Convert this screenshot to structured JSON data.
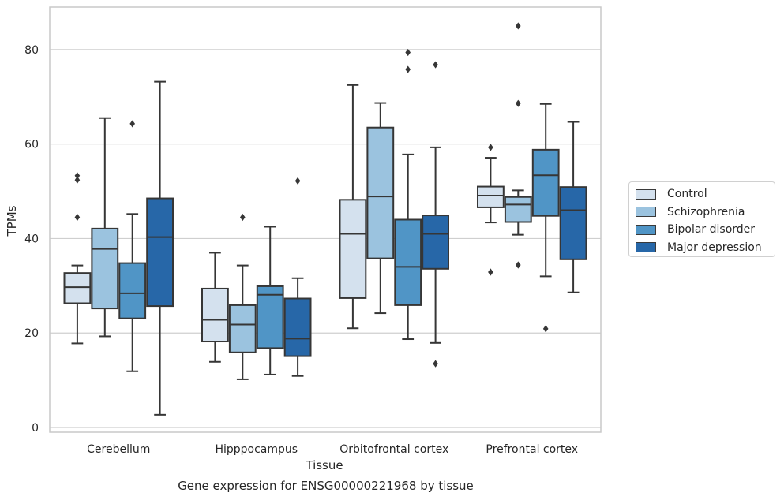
{
  "colors": {
    "series": [
      "#d4e1ee",
      "#9bc3df",
      "#5095c6",
      "#2767a8"
    ],
    "outline": "#363636",
    "grid": "#cfcfcf",
    "frame": "#c9c9c9"
  },
  "caption": "Gene expression for ENSG00000221968 by tissue",
  "chart_data": {
    "type": "box",
    "title": "",
    "xlabel": "Tissue",
    "ylabel": "TPMs",
    "ylim": [
      -1,
      89
    ],
    "yticks": [
      0,
      20,
      40,
      60,
      80
    ],
    "grid": "horizontal",
    "legend_position": "right",
    "categories": [
      "Cerebellum",
      "Hipppocampus",
      "Orbitofrontal cortex",
      "Prefrontal cortex"
    ],
    "series": [
      {
        "name": "Control",
        "boxes": [
          {
            "whisker_low": 17.8,
            "q1": 26.3,
            "median": 29.7,
            "q3": 32.7,
            "whisker_high": 34.3,
            "outliers": [
              44.5,
              52.4,
              53.3
            ]
          },
          {
            "whisker_low": 13.9,
            "q1": 18.2,
            "median": 22.8,
            "q3": 29.4,
            "whisker_high": 37.0,
            "outliers": []
          },
          {
            "whisker_low": 21.0,
            "q1": 27.4,
            "median": 41.0,
            "q3": 48.2,
            "whisker_high": 72.5,
            "outliers": []
          },
          {
            "whisker_low": 43.4,
            "q1": 46.6,
            "median": 49.1,
            "q3": 51.0,
            "whisker_high": 57.1,
            "outliers": [
              32.9,
              59.3
            ]
          }
        ]
      },
      {
        "name": "Schizophrenia",
        "boxes": [
          {
            "whisker_low": 19.3,
            "q1": 25.2,
            "median": 37.8,
            "q3": 42.1,
            "whisker_high": 65.5,
            "outliers": []
          },
          {
            "whisker_low": 10.2,
            "q1": 15.9,
            "median": 21.8,
            "q3": 25.9,
            "whisker_high": 34.3,
            "outliers": [
              44.5
            ]
          },
          {
            "whisker_low": 24.2,
            "q1": 35.8,
            "median": 48.9,
            "q3": 63.5,
            "whisker_high": 68.7,
            "outliers": []
          },
          {
            "whisker_low": 40.8,
            "q1": 43.5,
            "median": 47.2,
            "q3": 48.8,
            "whisker_high": 50.2,
            "outliers": [
              34.4,
              68.6,
              85.0
            ]
          }
        ]
      },
      {
        "name": "Bipolar disorder",
        "boxes": [
          {
            "whisker_low": 11.9,
            "q1": 23.1,
            "median": 28.4,
            "q3": 34.8,
            "whisker_high": 45.2,
            "outliers": [
              64.3
            ]
          },
          {
            "whisker_low": 11.2,
            "q1": 16.8,
            "median": 28.1,
            "q3": 29.9,
            "whisker_high": 42.5,
            "outliers": []
          },
          {
            "whisker_low": 18.7,
            "q1": 25.9,
            "median": 34.0,
            "q3": 44.0,
            "whisker_high": 57.8,
            "outliers": [
              75.8,
              79.4
            ]
          },
          {
            "whisker_low": 32.0,
            "q1": 44.8,
            "median": 53.4,
            "q3": 58.8,
            "whisker_high": 68.5,
            "outliers": [
              20.9
            ]
          }
        ]
      },
      {
        "name": "Major depression",
        "boxes": [
          {
            "whisker_low": 2.7,
            "q1": 25.7,
            "median": 40.3,
            "q3": 48.5,
            "whisker_high": 73.2,
            "outliers": []
          },
          {
            "whisker_low": 10.9,
            "q1": 15.1,
            "median": 18.8,
            "q3": 27.3,
            "whisker_high": 31.6,
            "outliers": [
              52.2
            ]
          },
          {
            "whisker_low": 17.9,
            "q1": 33.6,
            "median": 41.0,
            "q3": 44.9,
            "whisker_high": 59.3,
            "outliers": [
              13.5,
              76.8
            ]
          },
          {
            "whisker_low": 28.6,
            "q1": 35.6,
            "median": 46.0,
            "q3": 50.9,
            "whisker_high": 64.7,
            "outliers": []
          }
        ]
      }
    ]
  }
}
